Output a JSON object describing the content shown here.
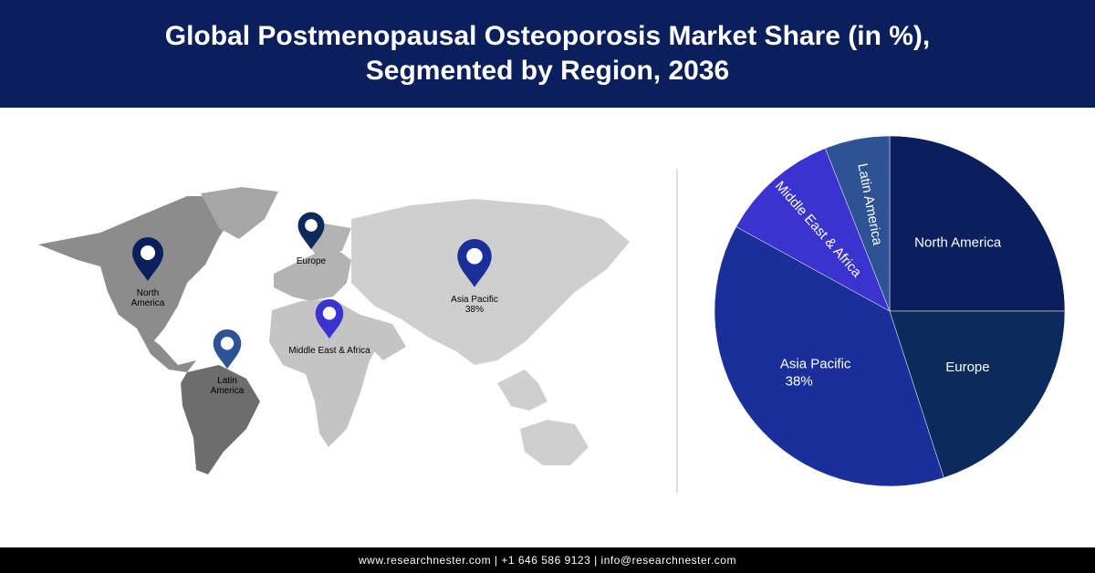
{
  "chart_data": {
    "type": "pie",
    "title": "Global Postmenopausal Osteoporosis Market Share (in %), Segmented by Region, 2036",
    "categories": [
      "North America",
      "Europe",
      "Asia Pacific",
      "Middle East & Africa",
      "Latin America"
    ],
    "values": [
      25,
      20,
      38,
      11,
      6
    ],
    "value_labels": [
      null,
      null,
      "38%",
      null,
      null
    ],
    "colors": [
      "#0b1f5c",
      "#0d2a5c",
      "#1a2f9a",
      "#3a33cf",
      "#2e5394"
    ]
  },
  "footer": "www.researchnester.com | +1 646 586 9123 | info@researchnester.com"
}
